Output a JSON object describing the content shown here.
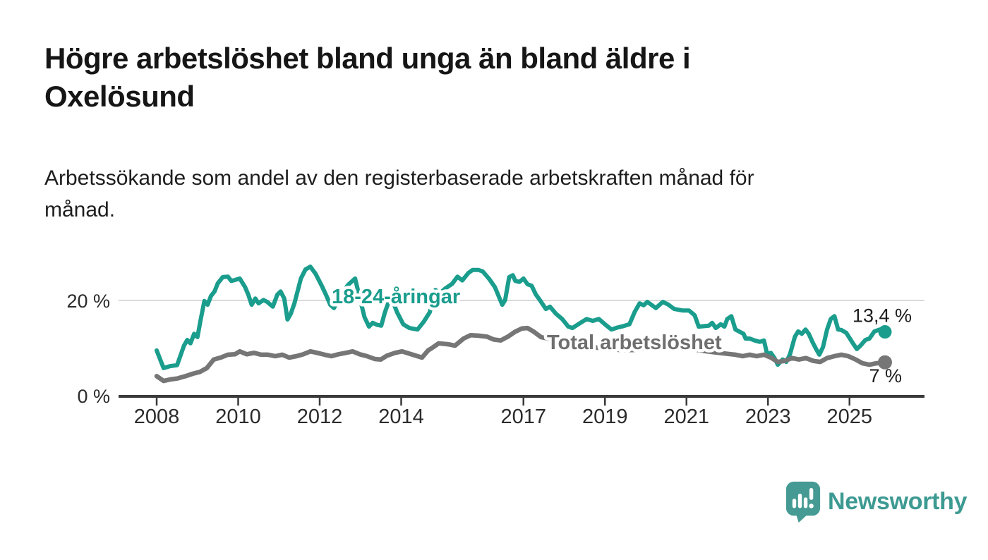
{
  "chart_data": {
    "type": "line",
    "title": "Högre arbetslöshet bland unga än bland äldre i\nOxelösund",
    "subtitle": "Arbetssökande som andel av den registerbaserade arbetskraften månad för\nmånad.",
    "unit": "%",
    "x_domain": [
      2007.1,
      2026.8
    ],
    "y_domain": [
      0,
      32.7
    ],
    "grid": "horizontal-at-20-only",
    "legend_position": "inline-labels-on-lines",
    "x_ticks": [
      {
        "value": 2008,
        "label": "2008"
      },
      {
        "value": 2010,
        "label": "2010"
      },
      {
        "value": 2012,
        "label": "2012"
      },
      {
        "value": 2014,
        "label": "2014"
      },
      {
        "value": 2017,
        "label": "2017"
      },
      {
        "value": 2019,
        "label": "2019"
      },
      {
        "value": 2021,
        "label": "2021"
      },
      {
        "value": 2023,
        "label": "2023"
      },
      {
        "value": 2025,
        "label": "2025"
      }
    ],
    "y_ticks": [
      {
        "value": 0,
        "label": "0 %"
      },
      {
        "value": 20,
        "label": "20 %"
      }
    ],
    "series": [
      {
        "name": "18-24-aringar",
        "label": "18-24-åringar",
        "color": "#1A9D8D",
        "label_color": "#1A9D8D",
        "end_label": "13,4 %",
        "last_value": 13.4,
        "points": [
          [
            2008.0,
            9.5
          ],
          [
            2008.17,
            5.8
          ],
          [
            2008.33,
            6.2
          ],
          [
            2008.5,
            6.4
          ],
          [
            2008.67,
            10.5
          ],
          [
            2008.75,
            11.7
          ],
          [
            2008.83,
            11.0
          ],
          [
            2008.92,
            13.0
          ],
          [
            2009.0,
            12.3
          ],
          [
            2009.08,
            16.0
          ],
          [
            2009.17,
            19.9
          ],
          [
            2009.25,
            19.1
          ],
          [
            2009.33,
            20.9
          ],
          [
            2009.42,
            21.9
          ],
          [
            2009.5,
            23.6
          ],
          [
            2009.62,
            24.9
          ],
          [
            2009.75,
            25.0
          ],
          [
            2009.83,
            24.1
          ],
          [
            2009.92,
            24.3
          ],
          [
            2010.04,
            24.6
          ],
          [
            2010.17,
            22.8
          ],
          [
            2010.25,
            21.2
          ],
          [
            2010.33,
            19.1
          ],
          [
            2010.42,
            20.4
          ],
          [
            2010.5,
            19.4
          ],
          [
            2010.62,
            20.1
          ],
          [
            2010.71,
            19.7
          ],
          [
            2010.85,
            18.7
          ],
          [
            2010.96,
            21.2
          ],
          [
            2011.04,
            21.9
          ],
          [
            2011.13,
            20.4
          ],
          [
            2011.21,
            16.0
          ],
          [
            2011.29,
            17.2
          ],
          [
            2011.38,
            19.4
          ],
          [
            2011.54,
            24.6
          ],
          [
            2011.65,
            26.5
          ],
          [
            2011.77,
            27.1
          ],
          [
            2011.9,
            25.6
          ],
          [
            2012.05,
            23.1
          ],
          [
            2012.17,
            20.9
          ],
          [
            2012.26,
            19.1
          ],
          [
            2012.35,
            18.4
          ],
          [
            2012.43,
            19.7
          ],
          [
            2012.55,
            21.5
          ],
          [
            2012.7,
            23.3
          ],
          [
            2012.87,
            24.6
          ],
          [
            2012.97,
            21.0
          ],
          [
            2013.1,
            16.5
          ],
          [
            2013.21,
            14.5
          ],
          [
            2013.3,
            15.3
          ],
          [
            2013.4,
            14.9
          ],
          [
            2013.51,
            14.7
          ],
          [
            2013.6,
            17.5
          ],
          [
            2013.68,
            19.4
          ],
          [
            2013.78,
            20.1
          ],
          [
            2013.9,
            17.5
          ],
          [
            2014.05,
            15.0
          ],
          [
            2014.2,
            14.2
          ],
          [
            2014.4,
            13.9
          ],
          [
            2014.55,
            15.5
          ],
          [
            2014.7,
            17.5
          ],
          [
            2014.84,
            22.2
          ],
          [
            2014.95,
            21.5
          ],
          [
            2015.08,
            22.5
          ],
          [
            2015.25,
            23.5
          ],
          [
            2015.38,
            25.0
          ],
          [
            2015.5,
            24.2
          ],
          [
            2015.65,
            25.8
          ],
          [
            2015.75,
            26.4
          ],
          [
            2015.9,
            26.4
          ],
          [
            2016.0,
            26.1
          ],
          [
            2016.15,
            24.6
          ],
          [
            2016.3,
            22.8
          ],
          [
            2016.48,
            19.1
          ],
          [
            2016.55,
            20.1
          ],
          [
            2016.65,
            24.9
          ],
          [
            2016.74,
            25.3
          ],
          [
            2016.8,
            24.1
          ],
          [
            2016.9,
            23.9
          ],
          [
            2017.0,
            24.6
          ],
          [
            2017.1,
            23.4
          ],
          [
            2017.2,
            23.1
          ],
          [
            2017.3,
            21.3
          ],
          [
            2017.4,
            20.1
          ],
          [
            2017.55,
            18.2
          ],
          [
            2017.65,
            18.7
          ],
          [
            2017.8,
            17.2
          ],
          [
            2017.95,
            16.1
          ],
          [
            2018.1,
            14.5
          ],
          [
            2018.2,
            14.2
          ],
          [
            2018.4,
            15.3
          ],
          [
            2018.55,
            16.1
          ],
          [
            2018.7,
            15.7
          ],
          [
            2018.85,
            16.1
          ],
          [
            2019.04,
            14.7
          ],
          [
            2019.16,
            13.9
          ],
          [
            2019.3,
            14.3
          ],
          [
            2019.45,
            14.6
          ],
          [
            2019.6,
            15.0
          ],
          [
            2019.73,
            17.6
          ],
          [
            2019.85,
            19.4
          ],
          [
            2019.95,
            19.0
          ],
          [
            2020.04,
            19.7
          ],
          [
            2020.25,
            18.4
          ],
          [
            2020.42,
            19.7
          ],
          [
            2020.56,
            19.1
          ],
          [
            2020.7,
            18.2
          ],
          [
            2020.9,
            17.9
          ],
          [
            2021.06,
            17.9
          ],
          [
            2021.2,
            16.9
          ],
          [
            2021.3,
            14.5
          ],
          [
            2021.55,
            14.7
          ],
          [
            2021.63,
            15.3
          ],
          [
            2021.72,
            14.2
          ],
          [
            2021.84,
            15.0
          ],
          [
            2021.93,
            14.5
          ],
          [
            2022.0,
            16.1
          ],
          [
            2022.1,
            16.7
          ],
          [
            2022.2,
            13.9
          ],
          [
            2022.4,
            13.0
          ],
          [
            2022.45,
            12.0
          ],
          [
            2022.55,
            12.0
          ],
          [
            2022.67,
            11.6
          ],
          [
            2022.8,
            11.3
          ],
          [
            2022.9,
            11.6
          ],
          [
            2022.98,
            8.7
          ],
          [
            2023.07,
            9.0
          ],
          [
            2023.16,
            7.9
          ],
          [
            2023.24,
            6.5
          ],
          [
            2023.36,
            7.6
          ],
          [
            2023.45,
            7.1
          ],
          [
            2023.54,
            8.7
          ],
          [
            2023.66,
            12.4
          ],
          [
            2023.74,
            13.5
          ],
          [
            2023.83,
            13.0
          ],
          [
            2023.92,
            13.9
          ],
          [
            2024.0,
            13.0
          ],
          [
            2024.09,
            11.3
          ],
          [
            2024.18,
            9.8
          ],
          [
            2024.26,
            8.6
          ],
          [
            2024.35,
            10.2
          ],
          [
            2024.45,
            13.9
          ],
          [
            2024.54,
            16.1
          ],
          [
            2024.63,
            16.7
          ],
          [
            2024.72,
            13.9
          ],
          [
            2024.8,
            13.8
          ],
          [
            2024.92,
            13.2
          ],
          [
            2025.01,
            12.0
          ],
          [
            2025.1,
            10.8
          ],
          [
            2025.18,
            9.8
          ],
          [
            2025.27,
            10.5
          ],
          [
            2025.39,
            11.7
          ],
          [
            2025.49,
            12.0
          ],
          [
            2025.61,
            13.5
          ],
          [
            2025.74,
            13.9
          ],
          [
            2025.87,
            13.4
          ]
        ]
      },
      {
        "name": "total-arbetsloshet",
        "label": "Total arbetslöshet",
        "color": "#767676",
        "label_color": "#6F6F6F",
        "end_label": "7 %",
        "last_value": 7.0,
        "points": [
          [
            2008.0,
            4.1
          ],
          [
            2008.17,
            3.1
          ],
          [
            2008.33,
            3.4
          ],
          [
            2008.5,
            3.6
          ],
          [
            2008.71,
            4.1
          ],
          [
            2008.88,
            4.6
          ],
          [
            2009.06,
            5.0
          ],
          [
            2009.23,
            5.8
          ],
          [
            2009.4,
            7.6
          ],
          [
            2009.57,
            8.0
          ],
          [
            2009.75,
            8.6
          ],
          [
            2009.92,
            8.7
          ],
          [
            2010.04,
            9.3
          ],
          [
            2010.21,
            8.7
          ],
          [
            2010.39,
            9.0
          ],
          [
            2010.56,
            8.6
          ],
          [
            2010.73,
            8.6
          ],
          [
            2010.91,
            8.3
          ],
          [
            2011.08,
            8.6
          ],
          [
            2011.25,
            8.0
          ],
          [
            2011.43,
            8.3
          ],
          [
            2011.6,
            8.7
          ],
          [
            2011.77,
            9.3
          ],
          [
            2011.94,
            9.0
          ],
          [
            2012.12,
            8.6
          ],
          [
            2012.29,
            8.3
          ],
          [
            2012.46,
            8.7
          ],
          [
            2012.64,
            9.0
          ],
          [
            2012.81,
            9.3
          ],
          [
            2012.98,
            8.7
          ],
          [
            2013.16,
            8.3
          ],
          [
            2013.35,
            7.7
          ],
          [
            2013.5,
            7.6
          ],
          [
            2013.65,
            8.4
          ],
          [
            2013.85,
            9.0
          ],
          [
            2014.02,
            9.3
          ],
          [
            2014.28,
            8.6
          ],
          [
            2014.51,
            8.0
          ],
          [
            2014.66,
            9.5
          ],
          [
            2014.77,
            10.1
          ],
          [
            2014.92,
            11.0
          ],
          [
            2015.15,
            10.8
          ],
          [
            2015.32,
            10.5
          ],
          [
            2015.53,
            12.0
          ],
          [
            2015.7,
            12.7
          ],
          [
            2015.89,
            12.6
          ],
          [
            2016.1,
            12.4
          ],
          [
            2016.27,
            11.8
          ],
          [
            2016.44,
            11.6
          ],
          [
            2016.62,
            12.4
          ],
          [
            2016.79,
            13.4
          ],
          [
            2016.96,
            14.1
          ],
          [
            2017.1,
            14.2
          ],
          [
            2017.26,
            13.4
          ],
          [
            2017.43,
            12.3
          ],
          [
            2017.6,
            12.0
          ],
          [
            2017.8,
            11.5
          ],
          [
            2018.0,
            11.2
          ],
          [
            2018.3,
            10.7
          ],
          [
            2018.6,
            10.3
          ],
          [
            2018.9,
            10.0
          ],
          [
            2019.1,
            9.8
          ],
          [
            2019.4,
            9.6
          ],
          [
            2019.7,
            9.6
          ],
          [
            2020.0,
            9.9
          ],
          [
            2020.3,
            10.4
          ],
          [
            2020.6,
            10.5
          ],
          [
            2020.9,
            10.1
          ],
          [
            2021.2,
            9.7
          ],
          [
            2021.5,
            9.3
          ],
          [
            2021.8,
            9.0
          ],
          [
            2022.1,
            8.7
          ],
          [
            2022.2,
            8.6
          ],
          [
            2022.38,
            8.3
          ],
          [
            2022.55,
            8.6
          ],
          [
            2022.72,
            8.3
          ],
          [
            2022.9,
            8.6
          ],
          [
            2023.07,
            8.0
          ],
          [
            2023.24,
            7.1
          ],
          [
            2023.41,
            7.3
          ],
          [
            2023.59,
            7.9
          ],
          [
            2023.76,
            7.6
          ],
          [
            2023.93,
            7.9
          ],
          [
            2024.11,
            7.3
          ],
          [
            2024.28,
            7.1
          ],
          [
            2024.45,
            7.9
          ],
          [
            2024.63,
            8.3
          ],
          [
            2024.8,
            8.6
          ],
          [
            2024.97,
            8.3
          ],
          [
            2025.15,
            7.6
          ],
          [
            2025.32,
            6.8
          ],
          [
            2025.49,
            6.5
          ],
          [
            2025.66,
            6.8
          ],
          [
            2025.87,
            7.0
          ]
        ]
      }
    ],
    "colors": {
      "axis": "#3A3A3A",
      "gridline": "#DADADA",
      "tick_text": "#2B2B2B",
      "end_label_text": "#1D1D1D"
    }
  },
  "footer": {
    "brand": "Newsworthy",
    "brand_color": "#3D9A92",
    "icon_color": "#459B93",
    "icon": "speech-bubble-bar-chart-exclamation"
  }
}
